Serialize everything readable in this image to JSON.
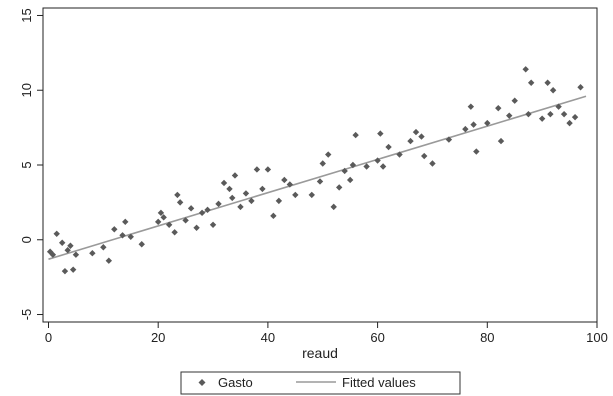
{
  "chart_data": {
    "type": "scatter",
    "title": "",
    "xlabel": "reaud",
    "ylabel": "",
    "xlim": [
      -1,
      100
    ],
    "ylim": [
      -5.5,
      15.5
    ],
    "x_ticks": [
      0,
      20,
      40,
      60,
      80,
      100
    ],
    "y_ticks": [
      -5,
      0,
      5,
      10,
      15
    ],
    "x_tick_labels": [
      "0",
      "20",
      "40",
      "60",
      "80",
      "100"
    ],
    "y_tick_labels": [
      "-5",
      "0",
      "5",
      "10",
      "15"
    ],
    "grid": false,
    "legend_position": "bottom",
    "series": [
      {
        "name": "Gasto",
        "kind": "scatter",
        "color": "#5a5a5a",
        "points": [
          [
            0.3,
            -0.8
          ],
          [
            0.8,
            -1.0
          ],
          [
            1.5,
            0.4
          ],
          [
            2.5,
            -0.2
          ],
          [
            3.0,
            -2.1
          ],
          [
            3.5,
            -0.7
          ],
          [
            4.0,
            -0.4
          ],
          [
            4.5,
            -2.0
          ],
          [
            5.0,
            -1.0
          ],
          [
            8.0,
            -0.9
          ],
          [
            10.0,
            -0.5
          ],
          [
            11.0,
            -1.4
          ],
          [
            12.0,
            0.7
          ],
          [
            13.5,
            0.3
          ],
          [
            14.0,
            1.2
          ],
          [
            15.0,
            0.2
          ],
          [
            17.0,
            -0.3
          ],
          [
            20.0,
            1.2
          ],
          [
            20.5,
            1.8
          ],
          [
            21.0,
            1.5
          ],
          [
            22.0,
            1.0
          ],
          [
            23.0,
            0.5
          ],
          [
            23.5,
            3.0
          ],
          [
            24.0,
            2.5
          ],
          [
            25.0,
            1.3
          ],
          [
            26.0,
            2.1
          ],
          [
            27.0,
            0.8
          ],
          [
            28.0,
            1.8
          ],
          [
            29.0,
            2.0
          ],
          [
            30.0,
            1.0
          ],
          [
            31.0,
            2.4
          ],
          [
            32.0,
            3.8
          ],
          [
            33.0,
            3.4
          ],
          [
            33.5,
            2.8
          ],
          [
            34.0,
            4.3
          ],
          [
            35.0,
            2.2
          ],
          [
            36.0,
            3.1
          ],
          [
            37.0,
            2.6
          ],
          [
            38.0,
            4.7
          ],
          [
            39.0,
            3.4
          ],
          [
            40.0,
            4.7
          ],
          [
            41.0,
            1.6
          ],
          [
            42.0,
            2.6
          ],
          [
            43.0,
            4.0
          ],
          [
            44.0,
            3.7
          ],
          [
            45.0,
            3.0
          ],
          [
            48.0,
            3.0
          ],
          [
            49.5,
            3.9
          ],
          [
            50.0,
            5.1
          ],
          [
            51.0,
            5.7
          ],
          [
            52.0,
            2.2
          ],
          [
            53.0,
            3.5
          ],
          [
            54.0,
            4.6
          ],
          [
            55.0,
            4.0
          ],
          [
            55.5,
            5.0
          ],
          [
            56.0,
            7.0
          ],
          [
            58.0,
            4.9
          ],
          [
            60.0,
            5.3
          ],
          [
            60.5,
            7.1
          ],
          [
            61.0,
            4.9
          ],
          [
            62.0,
            6.2
          ],
          [
            64.0,
            5.7
          ],
          [
            66.0,
            6.6
          ],
          [
            67.0,
            7.2
          ],
          [
            68.0,
            6.9
          ],
          [
            68.5,
            5.6
          ],
          [
            70.0,
            5.1
          ],
          [
            73.0,
            6.7
          ],
          [
            76.0,
            7.4
          ],
          [
            77.0,
            8.9
          ],
          [
            77.5,
            7.7
          ],
          [
            78.0,
            5.9
          ],
          [
            80.0,
            7.8
          ],
          [
            82.0,
            8.8
          ],
          [
            82.5,
            6.6
          ],
          [
            84.0,
            8.3
          ],
          [
            85.0,
            9.3
          ],
          [
            87.0,
            11.4
          ],
          [
            87.5,
            8.4
          ],
          [
            88.0,
            10.5
          ],
          [
            90.0,
            8.1
          ],
          [
            91.0,
            10.5
          ],
          [
            91.5,
            8.4
          ],
          [
            92.0,
            10.0
          ],
          [
            93.0,
            8.9
          ],
          [
            94.0,
            8.4
          ],
          [
            95.0,
            7.8
          ],
          [
            96.0,
            8.2
          ],
          [
            97.0,
            10.2
          ]
        ]
      },
      {
        "name": "Fitted values",
        "kind": "line",
        "color": "#9a9a9a",
        "x": [
          0,
          98
        ],
        "y": [
          -1.3,
          9.6
        ]
      }
    ]
  }
}
